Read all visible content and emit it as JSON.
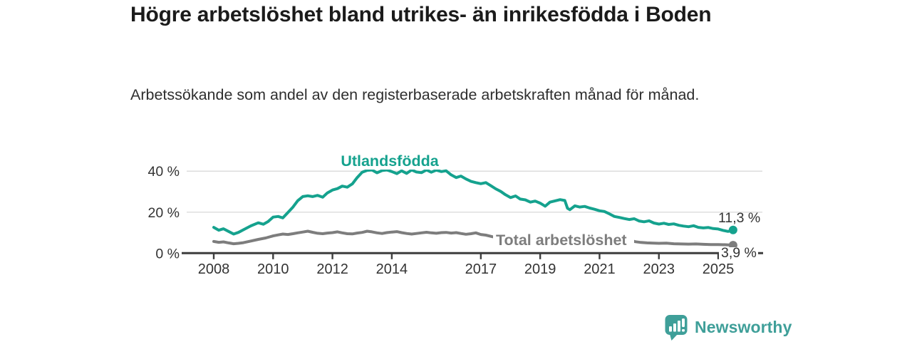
{
  "title": "Högre arbetslöshet bland utrikes- än inrikesfödda i Boden",
  "subtitle": "Arbetssökande som andel av den registerbaserade arbetskraften månad för månad.",
  "branding": {
    "logo_text": "Newsworthy",
    "logo_icon": "bar-chart-speech-bubble-icon"
  },
  "colors": {
    "accent_teal": "#15a28e",
    "line_gray": "#7d7d7d",
    "logo_teal": "#3f9f99",
    "title_text": "#1b1b1b",
    "axis_text": "#333333",
    "gridline": "#dcdcdc",
    "axis_line": "#3d3d3d",
    "background": "#ffffff"
  },
  "chart_data": {
    "type": "line",
    "unit": "%",
    "grid": true,
    "legend": "inline-labels",
    "x_axis": {
      "tick_labels": [
        "2008",
        "2010",
        "2012",
        "2014",
        "2017",
        "2019",
        "2021",
        "2023",
        "2025"
      ],
      "tick_years": [
        2008,
        2010,
        2012,
        2014,
        2017,
        2019,
        2021,
        2023,
        2025
      ],
      "range_years": [
        2007.1,
        2026.4
      ]
    },
    "y_axis": {
      "ticks": [
        {
          "value": 0,
          "label": "0 %"
        },
        {
          "value": 20,
          "label": "20 %"
        },
        {
          "value": 40,
          "label": "40 %"
        }
      ],
      "range": [
        0,
        44
      ]
    },
    "series": [
      {
        "name": "Utlandsfödda",
        "color": "#15a28e",
        "end_value_label": "11,3 %",
        "end_point": [
          2025.5,
          11.3
        ],
        "segments": [
          [
            [
              2008.0,
              12.6
            ],
            [
              2008.17,
              11.2
            ],
            [
              2008.33,
              11.9
            ],
            [
              2008.5,
              10.6
            ],
            [
              2008.67,
              9.3
            ],
            [
              2008.83,
              10.1
            ],
            [
              2009.0,
              11.4
            ],
            [
              2009.25,
              13.3
            ],
            [
              2009.5,
              14.8
            ],
            [
              2009.67,
              14.1
            ],
            [
              2009.83,
              15.4
            ],
            [
              2010.0,
              17.6
            ],
            [
              2010.17,
              17.9
            ],
            [
              2010.33,
              17.2
            ],
            [
              2010.5,
              19.8
            ],
            [
              2010.67,
              22.5
            ],
            [
              2010.83,
              25.6
            ],
            [
              2011.0,
              27.6
            ],
            [
              2011.17,
              28.0
            ],
            [
              2011.33,
              27.6
            ],
            [
              2011.5,
              28.2
            ],
            [
              2011.67,
              27.3
            ],
            [
              2011.83,
              29.4
            ],
            [
              2012.0,
              30.8
            ],
            [
              2012.17,
              31.5
            ],
            [
              2012.33,
              32.7
            ],
            [
              2012.5,
              32.2
            ],
            [
              2012.67,
              33.8
            ],
            [
              2012.83,
              36.8
            ],
            [
              2013.0,
              39.5
            ],
            [
              2013.17,
              40.4
            ],
            [
              2013.33,
              40.6
            ],
            [
              2013.5,
              39.2
            ],
            [
              2013.67,
              40.3
            ],
            [
              2013.83,
              40.6
            ],
            [
              2014.0,
              39.8
            ],
            [
              2014.17,
              38.8
            ],
            [
              2014.33,
              40.2
            ],
            [
              2014.5,
              38.9
            ],
            [
              2014.67,
              40.6
            ],
            [
              2014.83,
              39.6
            ],
            [
              2015.0,
              39.3
            ],
            [
              2015.17,
              40.6
            ],
            [
              2015.33,
              39.5
            ],
            [
              2015.5,
              40.5
            ],
            [
              2015.67,
              39.8
            ],
            [
              2015.83,
              40.2
            ],
            [
              2016.0,
              38.2
            ],
            [
              2016.17,
              36.9
            ],
            [
              2016.33,
              37.6
            ],
            [
              2016.5,
              36.2
            ],
            [
              2016.67,
              35.0
            ],
            [
              2016.83,
              34.4
            ],
            [
              2017.0,
              33.9
            ],
            [
              2017.17,
              34.4
            ],
            [
              2017.33,
              33.0
            ],
            [
              2017.5,
              31.4
            ],
            [
              2017.67,
              30.1
            ],
            [
              2017.83,
              28.5
            ],
            [
              2018.0,
              27.1
            ],
            [
              2018.17,
              27.9
            ],
            [
              2018.33,
              26.4
            ],
            [
              2018.5,
              26.0
            ],
            [
              2018.67,
              24.9
            ],
            [
              2018.83,
              25.4
            ],
            [
              2019.0,
              24.4
            ],
            [
              2019.17,
              22.9
            ],
            [
              2019.33,
              24.9
            ],
            [
              2019.5,
              25.5
            ],
            [
              2019.67,
              26.1
            ],
            [
              2019.83,
              25.7
            ],
            [
              2019.92,
              21.9
            ],
            [
              2020.0,
              21.2
            ],
            [
              2020.17,
              23.1
            ],
            [
              2020.33,
              22.5
            ],
            [
              2020.5,
              22.8
            ],
            [
              2020.67,
              22.0
            ],
            [
              2020.83,
              21.4
            ],
            [
              2021.0,
              20.7
            ],
            [
              2021.17,
              20.3
            ],
            [
              2021.33,
              19.2
            ],
            [
              2021.5,
              17.9
            ],
            [
              2021.67,
              17.4
            ],
            [
              2021.83,
              16.9
            ],
            [
              2022.0,
              16.4
            ],
            [
              2022.17,
              16.8
            ],
            [
              2022.33,
              15.7
            ],
            [
              2022.5,
              15.3
            ],
            [
              2022.67,
              15.8
            ],
            [
              2022.83,
              14.7
            ],
            [
              2023.0,
              14.2
            ],
            [
              2023.17,
              14.6
            ],
            [
              2023.33,
              14.0
            ],
            [
              2023.5,
              14.3
            ],
            [
              2023.67,
              13.6
            ],
            [
              2023.83,
              13.2
            ],
            [
              2024.0,
              12.9
            ],
            [
              2024.17,
              13.4
            ],
            [
              2024.33,
              12.6
            ],
            [
              2024.5,
              12.3
            ],
            [
              2024.67,
              12.5
            ],
            [
              2024.83,
              12.0
            ],
            [
              2025.0,
              11.8
            ],
            [
              2025.17,
              11.1
            ],
            [
              2025.33,
              10.6
            ],
            [
              2025.5,
              11.3
            ]
          ]
        ]
      },
      {
        "name": "Total arbetslöshet",
        "color": "#7d7d7d",
        "end_value_label": "3,9 %",
        "end_point": [
          2025.5,
          3.9
        ],
        "segments": [
          [
            [
              2008.0,
              5.7
            ],
            [
              2008.17,
              5.3
            ],
            [
              2008.33,
              5.5
            ],
            [
              2008.5,
              5.0
            ],
            [
              2008.67,
              4.6
            ],
            [
              2008.83,
              4.8
            ],
            [
              2009.0,
              5.1
            ],
            [
              2009.25,
              5.9
            ],
            [
              2009.5,
              6.7
            ],
            [
              2009.75,
              7.4
            ],
            [
              2010.0,
              8.4
            ],
            [
              2010.17,
              8.9
            ],
            [
              2010.33,
              9.3
            ],
            [
              2010.5,
              9.1
            ],
            [
              2010.67,
              9.5
            ],
            [
              2010.83,
              9.9
            ],
            [
              2011.0,
              10.3
            ],
            [
              2011.17,
              10.7
            ],
            [
              2011.33,
              10.2
            ],
            [
              2011.5,
              9.7
            ],
            [
              2011.67,
              9.5
            ],
            [
              2011.83,
              9.8
            ],
            [
              2012.0,
              10.0
            ],
            [
              2012.17,
              10.4
            ],
            [
              2012.33,
              9.9
            ],
            [
              2012.5,
              9.5
            ],
            [
              2012.67,
              9.4
            ],
            [
              2012.83,
              9.8
            ],
            [
              2013.0,
              10.1
            ],
            [
              2013.17,
              10.7
            ],
            [
              2013.33,
              10.4
            ],
            [
              2013.5,
              9.9
            ],
            [
              2013.67,
              9.6
            ],
            [
              2013.83,
              10.0
            ],
            [
              2014.0,
              10.3
            ],
            [
              2014.17,
              10.5
            ],
            [
              2014.33,
              10.0
            ],
            [
              2014.5,
              9.6
            ],
            [
              2014.67,
              9.3
            ],
            [
              2014.83,
              9.6
            ],
            [
              2015.0,
              9.9
            ],
            [
              2015.17,
              10.2
            ],
            [
              2015.33,
              9.9
            ],
            [
              2015.5,
              9.7
            ],
            [
              2015.67,
              10.0
            ],
            [
              2015.83,
              10.1
            ],
            [
              2016.0,
              9.8
            ],
            [
              2016.17,
              10.0
            ],
            [
              2016.33,
              9.6
            ],
            [
              2016.5,
              9.2
            ],
            [
              2016.67,
              9.5
            ],
            [
              2016.83,
              9.9
            ],
            [
              2017.0,
              9.1
            ],
            [
              2017.17,
              8.8
            ],
            [
              2017.4,
              8.0
            ]
          ],
          [
            [
              2022.05,
              6.3
            ],
            [
              2022.2,
              5.6
            ],
            [
              2022.4,
              5.2
            ],
            [
              2022.6,
              5.0
            ],
            [
              2022.83,
              4.9
            ],
            [
              2023.0,
              4.8
            ],
            [
              2023.25,
              4.9
            ],
            [
              2023.5,
              4.6
            ],
            [
              2023.75,
              4.5
            ],
            [
              2024.0,
              4.4
            ],
            [
              2024.25,
              4.5
            ],
            [
              2024.5,
              4.3
            ],
            [
              2024.75,
              4.2
            ],
            [
              2025.0,
              4.2
            ],
            [
              2025.25,
              4.1
            ],
            [
              2025.5,
              3.9
            ]
          ]
        ]
      }
    ]
  }
}
